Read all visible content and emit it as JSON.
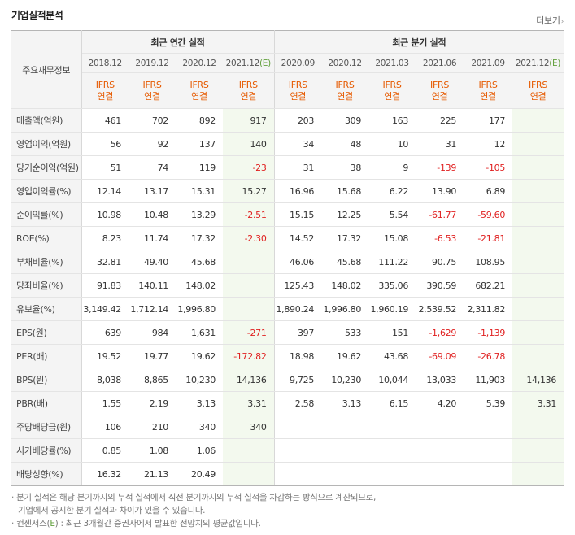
{
  "section_title": "기업실적분석",
  "more_label": "더보기",
  "more_arrow": "›",
  "row_header_label": "주요재무정보",
  "group_annual": "최근 연간 실적",
  "group_quarter": "최근 분기 실적",
  "estimate_marker": "(E)",
  "columns": [
    "2018.12",
    "2019.12",
    "2020.12",
    "2021.12",
    "2020.09",
    "2020.12",
    "2021.03",
    "2021.06",
    "2021.09",
    "2021.12"
  ],
  "unit_line1": "IFRS",
  "unit_line2": "연결",
  "rows": [
    {
      "label": "매출액(억원)",
      "values": [
        "461",
        "702",
        "892",
        "917",
        "203",
        "309",
        "163",
        "225",
        "177",
        ""
      ]
    },
    {
      "label": "영업이익(억원)",
      "values": [
        "56",
        "92",
        "137",
        "140",
        "34",
        "48",
        "10",
        "31",
        "12",
        ""
      ]
    },
    {
      "label": "당기순이익(억원)",
      "values": [
        "51",
        "74",
        "119",
        "-23",
        "31",
        "38",
        "9",
        "-139",
        "-105",
        ""
      ]
    },
    {
      "label": "영업이익률(%)",
      "values": [
        "12.14",
        "13.17",
        "15.31",
        "15.27",
        "16.96",
        "15.68",
        "6.22",
        "13.90",
        "6.89",
        ""
      ]
    },
    {
      "label": "순이익률(%)",
      "values": [
        "10.98",
        "10.48",
        "13.29",
        "-2.51",
        "15.15",
        "12.25",
        "5.54",
        "-61.77",
        "-59.60",
        ""
      ]
    },
    {
      "label": "ROE(%)",
      "values": [
        "8.23",
        "11.74",
        "17.32",
        "-2.30",
        "14.52",
        "17.32",
        "15.08",
        "-6.53",
        "-21.81",
        ""
      ]
    },
    {
      "label": "부채비율(%)",
      "values": [
        "32.81",
        "49.40",
        "45.68",
        "",
        "46.06",
        "45.68",
        "111.22",
        "90.75",
        "108.95",
        ""
      ]
    },
    {
      "label": "당좌비율(%)",
      "values": [
        "91.83",
        "140.11",
        "148.02",
        "",
        "125.43",
        "148.02",
        "335.06",
        "390.59",
        "682.21",
        ""
      ]
    },
    {
      "label": "유보율(%)",
      "values": [
        "3,149.42",
        "1,712.14",
        "1,996.80",
        "",
        "1,890.24",
        "1,996.80",
        "1,960.19",
        "2,539.52",
        "2,311.82",
        ""
      ]
    },
    {
      "label": "EPS(원)",
      "values": [
        "639",
        "984",
        "1,631",
        "-271",
        "397",
        "533",
        "151",
        "-1,629",
        "-1,139",
        ""
      ]
    },
    {
      "label": "PER(배)",
      "values": [
        "19.52",
        "19.77",
        "19.62",
        "-172.82",
        "18.98",
        "19.62",
        "43.68",
        "-69.09",
        "-26.78",
        ""
      ]
    },
    {
      "label": "BPS(원)",
      "values": [
        "8,038",
        "8,865",
        "10,230",
        "14,136",
        "9,725",
        "10,230",
        "10,044",
        "13,033",
        "11,903",
        "14,136"
      ]
    },
    {
      "label": "PBR(배)",
      "values": [
        "1.55",
        "2.19",
        "3.13",
        "3.31",
        "2.58",
        "3.13",
        "6.15",
        "4.20",
        "5.39",
        "3.31"
      ]
    },
    {
      "label": "주당배당금(원)",
      "values": [
        "106",
        "210",
        "340",
        "340",
        "",
        "",
        "",
        "",
        "",
        ""
      ]
    },
    {
      "label": "시가배당률(%)",
      "values": [
        "0.85",
        "1.08",
        "1.06",
        "",
        "",
        "",
        "",
        "",
        "",
        ""
      ]
    },
    {
      "label": "배당성향(%)",
      "values": [
        "16.32",
        "21.13",
        "20.49",
        "",
        "",
        "",
        "",
        "",
        "",
        ""
      ]
    }
  ],
  "notes": {
    "line1": "· 분기 실적은 해당 분기까지의 누적 실적에서 직전 분기까지의 누적 실적을 차감하는 방식으로 계산되므로,",
    "line2": "기업에서 공시한 분기 실적과 차이가 있을 수 있습니다.",
    "line3_prefix": "· 컨센서스(",
    "line3_marker": "E",
    "line3_suffix": ") : 최근 3개월간 증권사에서 발표한 전망치의 평균값입니다."
  },
  "colors": {
    "negative": "#e02020",
    "estimate_bg": "#f3f9ee",
    "estimate_marker": "#62a03c",
    "ifrs": "#e65a00"
  }
}
